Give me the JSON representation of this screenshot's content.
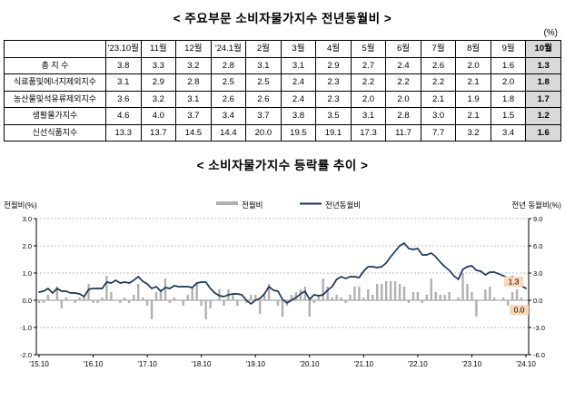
{
  "page": {
    "table_title": "< 주요부문 소비자물가지수 전년동월비 >",
    "unit_label": "(%)",
    "chart_title": "< 소비자물가지수 등락률 추이 >"
  },
  "table": {
    "columns": [
      "'23.10월",
      "11월",
      "12월",
      "'24.1월",
      "2월",
      "3월",
      "4월",
      "5월",
      "6월",
      "7월",
      "8월",
      "9월",
      "10월"
    ],
    "rows": [
      {
        "label": "총 지 수",
        "values": [
          "3.8",
          "3.3",
          "3.2",
          "2.8",
          "3.1",
          "3.1",
          "2.9",
          "2.7",
          "2.4",
          "2.6",
          "2.0",
          "1.6",
          "1.3"
        ]
      },
      {
        "label": "식료품및에너지제외지수",
        "values": [
          "3.1",
          "2.9",
          "2.8",
          "2.5",
          "2.5",
          "2.4",
          "2.3",
          "2.2",
          "2.2",
          "2.2",
          "2.1",
          "2.0",
          "1.8"
        ]
      },
      {
        "label": "농산물및석유류제외지수",
        "values": [
          "3.6",
          "3.2",
          "3.1",
          "2.6",
          "2.6",
          "2.4",
          "2.3",
          "2.0",
          "2.0",
          "2.1",
          "1.9",
          "1.8",
          "1.7"
        ]
      },
      {
        "label": "생활물가지수",
        "values": [
          "4.6",
          "4.0",
          "3.7",
          "3.4",
          "3.7",
          "3.8",
          "3.5",
          "3.1",
          "2.8",
          "3.0",
          "2.1",
          "1.5",
          "1.2"
        ]
      },
      {
        "label": "신선식품지수",
        "values": [
          "13.3",
          "13.7",
          "14.5",
          "14.4",
          "20.0",
          "19.5",
          "19.1",
          "17.3",
          "11.7",
          "7.7",
          "3.2",
          "3.4",
          "1.6"
        ]
      }
    ]
  },
  "chart_data": {
    "type": "bar+line",
    "title": "소비자물가지수 등락률 추이",
    "left_axis": {
      "label": "전월비(%)",
      "min": -2,
      "max": 3,
      "step": 1
    },
    "right_axis": {
      "label": "전년 동월비(%)",
      "min": -6,
      "max": 9,
      "step": 3
    },
    "x_labels": [
      "'15.10",
      "'16.10",
      "'17.10",
      "'18.10",
      "'19.10",
      "'20.10",
      "'21.10",
      "'22.10",
      "'23.10",
      "'24.10"
    ],
    "x_tick_every": 12,
    "grid": "dashed-horizontal",
    "legend_position": "top-center",
    "colors": {
      "bar": "#b0b0b0",
      "line": "#17375e",
      "annotation_bg": "#fbd5b5"
    },
    "series": [
      {
        "name": "전월비",
        "type": "bar",
        "axis": "left",
        "values": [
          -0.1,
          -0.1,
          0.2,
          0.0,
          0.5,
          -0.3,
          0.1,
          0.0,
          -0.1,
          0.1,
          0.1,
          0.6,
          -0.1,
          -0.1,
          0.1,
          0.9,
          0.3,
          0.0,
          -0.1,
          0.1,
          -0.1,
          0.2,
          0.6,
          0.1,
          -0.2,
          -0.7,
          0.3,
          0.4,
          0.8,
          -0.1,
          0.1,
          0.0,
          -0.2,
          0.2,
          0.5,
          0.6,
          -0.2,
          -0.7,
          -0.3,
          0.0,
          0.4,
          -0.2,
          0.4,
          0.2,
          -0.2,
          0.0,
          -0.1,
          0.2,
          0.2,
          -0.5,
          0.2,
          0.6,
          0.0,
          -0.2,
          -0.6,
          -0.2,
          0.2,
          0.3,
          0.4,
          0.5,
          -0.6,
          -0.1,
          0.2,
          0.8,
          0.5,
          0.1,
          0.2,
          0.1,
          -0.1,
          0.2,
          0.5,
          0.5,
          0.1,
          0.4,
          0.2,
          0.6,
          0.6,
          0.7,
          0.7,
          0.7,
          0.6,
          0.5,
          -0.1,
          0.3,
          0.3,
          -0.1,
          0.2,
          0.8,
          0.3,
          0.2,
          0.2,
          0.3,
          0.0,
          0.1,
          1.0,
          0.6,
          0.3,
          -0.6,
          0.0,
          0.4,
          0.5,
          0.1,
          0.0,
          0.1,
          -0.2,
          0.3,
          0.4,
          0.1,
          0.0
        ]
      },
      {
        "name": "전년동월비",
        "type": "line",
        "axis": "right",
        "values": [
          0.9,
          1.0,
          1.3,
          0.8,
          1.3,
          1.0,
          1.0,
          0.8,
          0.8,
          0.7,
          0.4,
          1.2,
          1.3,
          1.3,
          1.3,
          2.0,
          1.9,
          2.2,
          1.9,
          2.0,
          1.9,
          2.2,
          2.6,
          2.1,
          1.8,
          1.3,
          1.5,
          1.0,
          1.4,
          1.3,
          1.6,
          1.5,
          1.5,
          1.5,
          1.4,
          1.9,
          2.0,
          2.0,
          1.3,
          0.8,
          0.5,
          0.4,
          0.6,
          0.7,
          0.7,
          0.6,
          0.0,
          -0.4,
          0.0,
          0.2,
          0.7,
          1.5,
          1.1,
          1.0,
          0.1,
          -0.3,
          0.0,
          0.3,
          0.7,
          1.0,
          0.1,
          0.6,
          0.5,
          0.6,
          1.1,
          1.5,
          2.3,
          2.6,
          2.4,
          2.6,
          2.6,
          2.5,
          3.2,
          3.7,
          3.7,
          3.6,
          3.7,
          4.1,
          4.8,
          5.4,
          6.0,
          6.3,
          5.7,
          5.6,
          5.7,
          5.0,
          5.0,
          5.2,
          4.8,
          4.2,
          3.7,
          3.3,
          2.7,
          2.3,
          3.4,
          3.7,
          3.8,
          3.3,
          3.2,
          2.8,
          3.1,
          3.1,
          2.9,
          2.7,
          2.4,
          2.6,
          2.0,
          1.6,
          1.3
        ]
      }
    ],
    "annotations": [
      {
        "text": "1.3",
        "target": "line-end"
      },
      {
        "text": "0.0",
        "target": "bar-end"
      }
    ]
  }
}
